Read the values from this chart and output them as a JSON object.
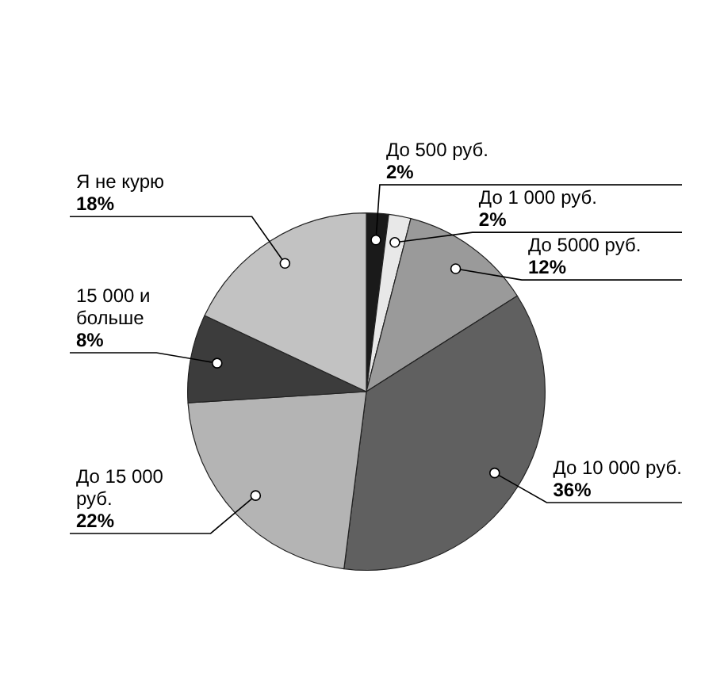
{
  "chart_data": {
    "type": "pie",
    "categories": [
      "До 500 руб.",
      "До 1 000 руб.",
      "До 5000 руб.",
      "До 10 000 руб.",
      "До 15 000 руб.",
      "15 000 и больше",
      "Я не курю"
    ],
    "values": [
      2,
      2,
      12,
      36,
      22,
      8,
      18
    ],
    "value_labels": [
      "2%",
      "2%",
      "12%",
      "36%",
      "22%",
      "8%",
      "18%"
    ],
    "colors": [
      "#1a1a1a",
      "#e8e8e8",
      "#9a9a9a",
      "#606060",
      "#b4b4b4",
      "#3c3c3c",
      "#c2c2c2"
    ],
    "legend": false
  }
}
